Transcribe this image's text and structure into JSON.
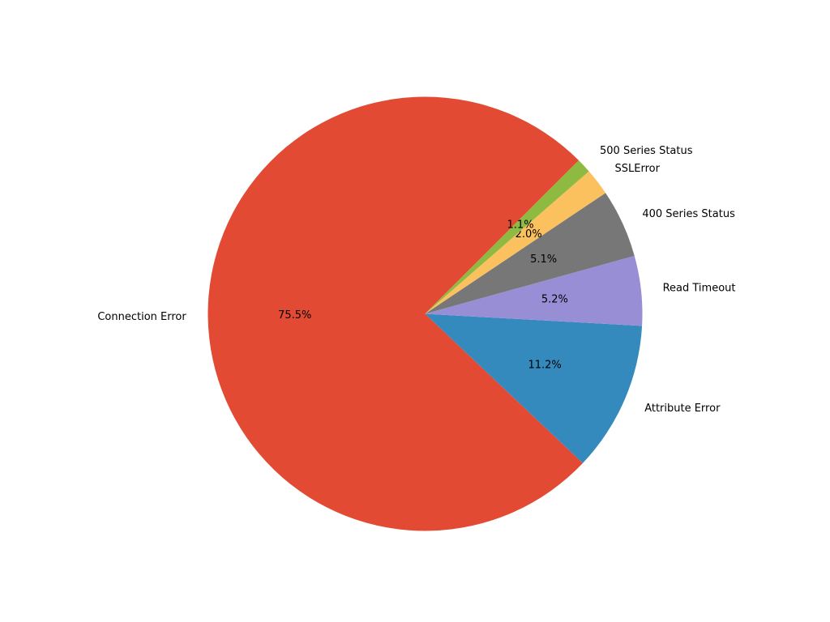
{
  "chart_data": {
    "type": "pie",
    "title": "",
    "start_angle_deg": 45,
    "counterclock": true,
    "slices": [
      {
        "label": "Connection Error",
        "value": 75.5,
        "pct_label": "75.5%",
        "color": "#e24a33"
      },
      {
        "label": "Attribute Error",
        "value": 11.2,
        "pct_label": "11.2%",
        "color": "#348abd"
      },
      {
        "label": "Read Timeout",
        "value": 5.2,
        "pct_label": "5.2%",
        "color": "#988ed5"
      },
      {
        "label": "400 Series Status",
        "value": 5.1,
        "pct_label": "5.1%",
        "color": "#777777"
      },
      {
        "label": "SSLError",
        "value": 2.0,
        "pct_label": "2.0%",
        "color": "#fbc15e"
      },
      {
        "label": "500 Series Status",
        "value": 1.1,
        "pct_label": "1.1%",
        "color": "#8eba42"
      }
    ]
  }
}
